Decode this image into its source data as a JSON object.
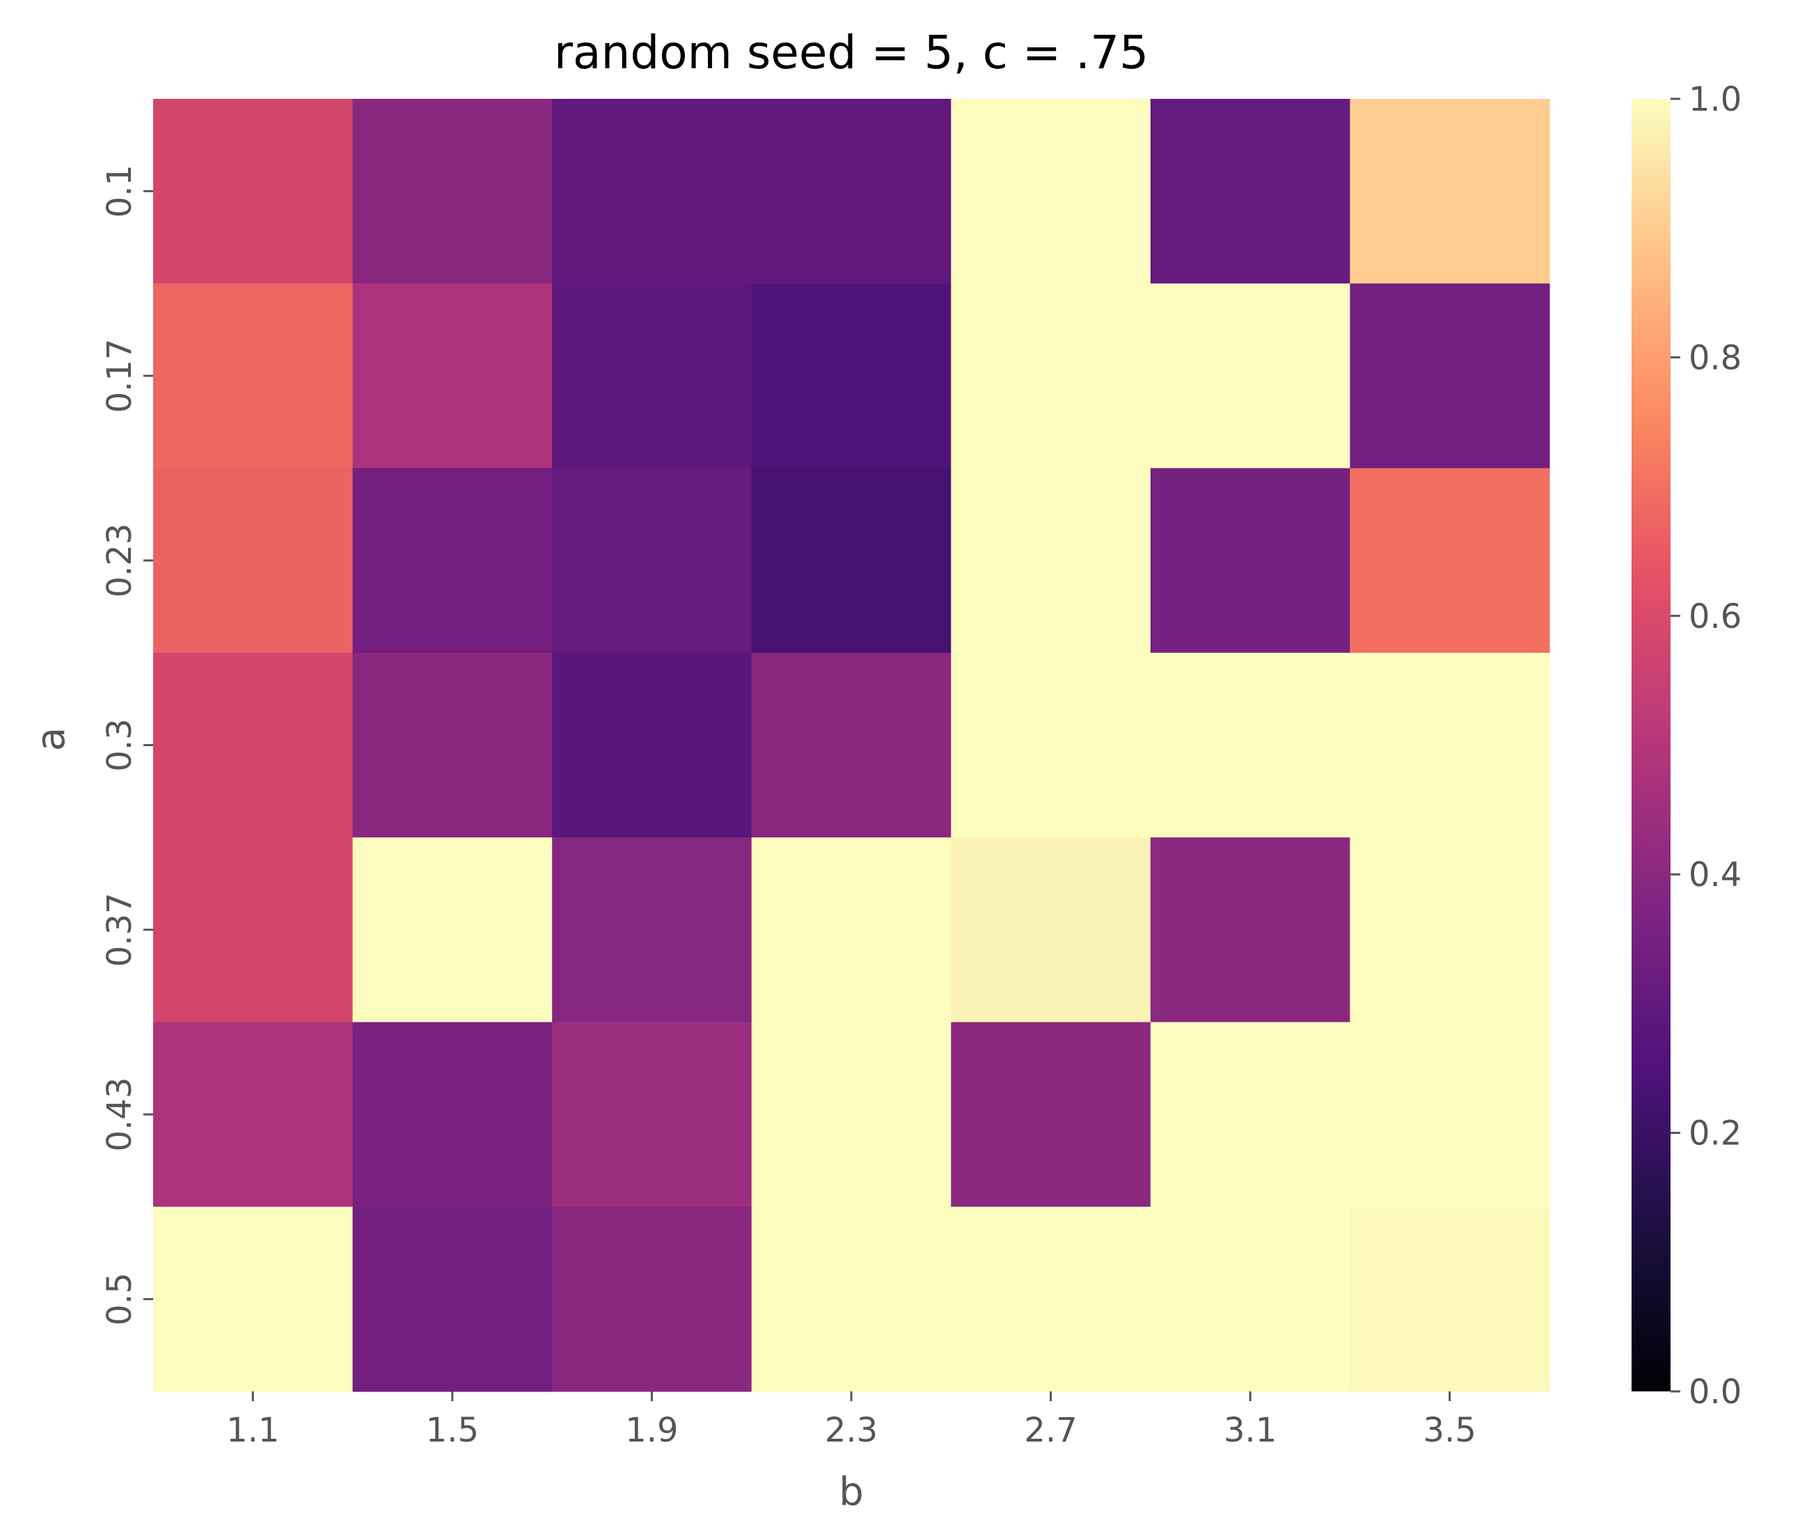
{
  "chart_data": {
    "type": "heatmap",
    "title": "random seed = 5, c = .75",
    "xlabel": "b",
    "ylabel": "a",
    "x_categories": [
      "1.1",
      "1.5",
      "1.9",
      "2.3",
      "2.7",
      "3.1",
      "3.5"
    ],
    "y_categories": [
      "0.1",
      "0.17",
      "0.23",
      "0.3",
      "0.37",
      "0.43",
      "0.5"
    ],
    "values": [
      [
        0.58,
        0.4,
        0.3,
        0.3,
        1.0,
        0.31,
        0.9
      ],
      [
        0.68,
        0.48,
        0.29,
        0.25,
        1.0,
        1.0,
        0.34
      ],
      [
        0.67,
        0.34,
        0.31,
        0.23,
        1.0,
        0.35,
        0.7
      ],
      [
        0.58,
        0.4,
        0.28,
        0.4,
        1.0,
        1.0,
        1.0
      ],
      [
        0.58,
        1.0,
        0.39,
        1.0,
        0.98,
        0.4,
        1.0
      ],
      [
        0.48,
        0.36,
        0.44,
        1.0,
        0.4,
        1.0,
        1.0
      ],
      [
        1.0,
        0.34,
        0.4,
        1.0,
        1.0,
        1.0,
        0.99
      ]
    ],
    "colormap": "magma",
    "colorbar": {
      "min": 0.0,
      "max": 1.0,
      "ticks": [
        0.0,
        0.2,
        0.4,
        0.6,
        0.8,
        1.0
      ],
      "tick_labels": [
        "0.0",
        "0.2",
        "0.4",
        "0.6",
        "0.8",
        "1.0"
      ]
    },
    "grid": false,
    "legend": "none"
  }
}
